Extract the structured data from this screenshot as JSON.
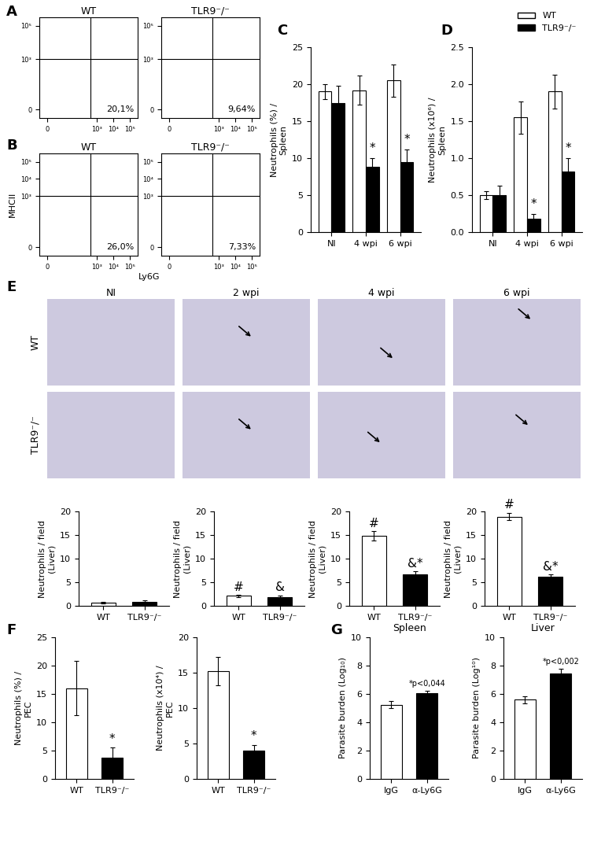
{
  "chart_data": [
    {
      "type": "flow_cytometry",
      "panel_label": "A",
      "title": "WT",
      "xlim": [
        -0.5,
        5.5
      ],
      "ylim": [
        -0.5,
        5.5
      ],
      "xticks": [
        {
          "value": 0,
          "label": "0"
        },
        {
          "value": 3,
          "label": "10³"
        },
        {
          "value": 4,
          "label": "10⁴"
        },
        {
          "value": 5,
          "label": "10⁵"
        }
      ],
      "yticks": [
        {
          "value": 0,
          "label": "0"
        },
        {
          "value": 3,
          "label": "10³"
        },
        {
          "value": 5,
          "label": "10⁵"
        }
      ],
      "gates": {
        "x": 2.6,
        "y": 3.0
      },
      "annotation": "20,1%"
    },
    {
      "type": "flow_cytometry",
      "title": "TLR9⁻/⁻",
      "xlim": [
        -0.5,
        5.5
      ],
      "ylim": [
        -0.5,
        5.5
      ],
      "xticks": [
        {
          "value": 0,
          "label": "0"
        },
        {
          "value": 3,
          "label": "10³"
        },
        {
          "value": 4,
          "label": "10⁴"
        },
        {
          "value": 5,
          "label": "10⁵"
        }
      ],
      "yticks": [
        {
          "value": 0,
          "label": "0"
        },
        {
          "value": 3,
          "label": "10³"
        },
        {
          "value": 5,
          "label": "10⁵"
        }
      ],
      "gates": {
        "x": 2.6,
        "y": 3.0
      },
      "annotation": "9,64%"
    },
    {
      "type": "flow_cytometry",
      "panel_label": "B",
      "title": "WT",
      "y_label": "MHCII",
      "x_label": "Ly6G",
      "xlim": [
        -0.5,
        5.5
      ],
      "ylim": [
        -0.5,
        5.5
      ],
      "xticks": [
        {
          "value": 0,
          "label": "0"
        },
        {
          "value": 3,
          "label": "10³"
        },
        {
          "value": 4,
          "label": "10⁴"
        },
        {
          "value": 5,
          "label": "10⁵"
        }
      ],
      "yticks": [
        {
          "value": 0,
          "label": "0"
        },
        {
          "value": 3,
          "label": "10³"
        },
        {
          "value": 4,
          "label": "10⁴"
        },
        {
          "value": 5,
          "label": "10⁵"
        }
      ],
      "gates": {
        "x": 2.6,
        "y": 3.0
      },
      "annotation": "26,0%"
    },
    {
      "type": "flow_cytometry",
      "title": "TLR9⁻/⁻",
      "xlim": [
        -0.5,
        5.5
      ],
      "ylim": [
        -0.5,
        5.5
      ],
      "xticks": [
        {
          "value": 0,
          "label": "0"
        },
        {
          "value": 3,
          "label": "10³"
        },
        {
          "value": 4,
          "label": "10⁴"
        },
        {
          "value": 5,
          "label": "10⁵"
        }
      ],
      "yticks": [
        {
          "value": 0,
          "label": "0"
        },
        {
          "value": 3,
          "label": "10³"
        },
        {
          "value": 4,
          "label": "10⁴"
        },
        {
          "value": 5,
          "label": "10⁵"
        }
      ],
      "gates": {
        "x": 2.6,
        "y": 3.0
      },
      "annotation": "7,33%"
    },
    {
      "type": "bar",
      "panel_label": "C",
      "y_label": "Neutrophils (%) /\nSpleen",
      "categories": [
        "NI",
        "4 wpi",
        "6 wpi"
      ],
      "legend": "upper right",
      "series": [
        {
          "name": "WT",
          "color": "#ffffff",
          "values": [
            19.0,
            19.2,
            20.5
          ],
          "errors": [
            1.0,
            2.0,
            2.2
          ],
          "annotations": [
            null,
            null,
            null
          ]
        },
        {
          "name": "TLR9⁻/⁻",
          "color": "#000000",
          "values": [
            17.5,
            8.8,
            9.5
          ],
          "errors": [
            2.3,
            1.2,
            1.7
          ],
          "annotations": [
            null,
            "*",
            "*"
          ]
        }
      ],
      "ylim": [
        0,
        25
      ],
      "yticks": [
        0,
        5,
        10,
        15,
        20,
        25
      ]
    },
    {
      "type": "bar",
      "panel_label": "D",
      "y_label": "Neutrophils (x10⁶) /\nSpleen",
      "categories": [
        "NI",
        "4 wpi",
        "6 wpi"
      ],
      "series": [
        {
          "color": "#ffffff",
          "values": [
            0.5,
            1.55,
            1.9
          ],
          "errors": [
            0.05,
            0.22,
            0.23
          ],
          "annotations": [
            null,
            null,
            null
          ]
        },
        {
          "color": "#000000",
          "values": [
            0.5,
            0.18,
            0.82
          ],
          "errors": [
            0.13,
            0.07,
            0.18
          ],
          "annotations": [
            null,
            "*",
            "*"
          ]
        }
      ],
      "ylim": [
        0.0,
        2.5
      ],
      "yticks": [
        0.0,
        0.5,
        1.0,
        1.5,
        2.0,
        2.5
      ]
    },
    {
      "type": "image",
      "panel_label": "E",
      "title": "NI",
      "row_label": "WT"
    },
    {
      "type": "image",
      "title": "2 wpi"
    },
    {
      "type": "image",
      "title": "4 wpi"
    },
    {
      "type": "image",
      "title": "6 wpi"
    },
    {
      "type": "image",
      "row_label": "TLR9⁻/⁻"
    },
    {
      "type": "image"
    },
    {
      "type": "image"
    },
    {
      "type": "image"
    },
    {
      "type": "bar",
      "y_label": "Neutrophils / field\n(Liver)",
      "categories": [
        "WT",
        "TLR9⁻/⁻"
      ],
      "colors": [
        "#ffffff",
        "#000000"
      ],
      "values": [
        0.7,
        0.9
      ],
      "errors": [
        0.2,
        0.3
      ],
      "annotations": [
        null,
        null
      ],
      "ylim": [
        0,
        20
      ],
      "yticks": [
        0,
        5,
        10,
        15,
        20
      ]
    },
    {
      "type": "bar",
      "y_label": "Neutrophils / field\n(Liver)",
      "categories": [
        "WT",
        "TLR9⁻/⁻"
      ],
      "colors": [
        "#ffffff",
        "#000000"
      ],
      "values": [
        2.1,
        1.9
      ],
      "errors": [
        0.2,
        0.3
      ],
      "annotations": [
        "#",
        "&"
      ],
      "ylim": [
        0,
        20
      ],
      "yticks": [
        0,
        5,
        10,
        15,
        20
      ]
    },
    {
      "type": "bar",
      "y_label": "Neutrophils / field\n(Liver)",
      "categories": [
        "WT",
        "TLR9⁻/⁻"
      ],
      "colors": [
        "#ffffff",
        "#000000"
      ],
      "values": [
        14.8,
        6.6
      ],
      "errors": [
        1.0,
        0.7
      ],
      "annotations": [
        "#",
        "&*"
      ],
      "ylim": [
        0,
        20
      ],
      "yticks": [
        0,
        5,
        10,
        15,
        20
      ]
    },
    {
      "type": "bar",
      "y_label": "Neutrophils / field\n(Liver)",
      "categories": [
        "WT",
        "TLR9⁻/⁻"
      ],
      "colors": [
        "#ffffff",
        "#000000"
      ],
      "values": [
        18.9,
        6.1
      ],
      "errors": [
        0.8,
        0.5
      ],
      "annotations": [
        "#",
        "&*"
      ],
      "ylim": [
        0,
        20
      ],
      "yticks": [
        0,
        5,
        10,
        15,
        20
      ]
    },
    {
      "type": "bar",
      "panel_label": "F",
      "y_label": "Neutrophils (%) /\nPEC",
      "categories": [
        "WT",
        "TLR9⁻/⁻"
      ],
      "colors": [
        "#ffffff",
        "#000000"
      ],
      "values": [
        16.0,
        3.8
      ],
      "errors": [
        4.8,
        1.7
      ],
      "annotations": [
        null,
        "*"
      ],
      "ylim": [
        0,
        25
      ],
      "yticks": [
        0,
        5,
        10,
        15,
        20,
        25
      ]
    },
    {
      "type": "bar",
      "y_label": "Neutrophils (x10⁴) /\nPEC",
      "categories": [
        "WT",
        "TLR9⁻/⁻"
      ],
      "colors": [
        "#ffffff",
        "#000000"
      ],
      "values": [
        15.2,
        4.0
      ],
      "errors": [
        2.0,
        0.8
      ],
      "annotations": [
        null,
        "*"
      ],
      "ylim": [
        0,
        20
      ],
      "yticks": [
        0,
        5,
        10,
        15,
        20
      ]
    },
    {
      "type": "bar",
      "panel_label": "G",
      "title": "Spleen",
      "y_label": "Parasite burden (Log₁₀)",
      "categories": [
        "IgG",
        "α-Ly6G"
      ],
      "colors": [
        "#ffffff",
        "#000000"
      ],
      "values": [
        5.25,
        6.05
      ],
      "errors": [
        0.25,
        0.2
      ],
      "annotations": [
        null,
        "*p<0,044"
      ],
      "ylim": [
        0,
        10
      ],
      "yticks": [
        0,
        2,
        4,
        6,
        8,
        10
      ]
    },
    {
      "type": "bar",
      "title": "Liver",
      "y_label": "Parasite burden (Log¹⁰)",
      "categories": [
        "IgG",
        "α-Ly6G"
      ],
      "colors": [
        "#ffffff",
        "#000000"
      ],
      "values": [
        5.6,
        7.45
      ],
      "errors": [
        0.25,
        0.35
      ],
      "annotations": [
        null,
        "*p<0,002"
      ],
      "ylim": [
        0,
        10
      ],
      "yticks": [
        0,
        2,
        4,
        6,
        8,
        10
      ]
    }
  ]
}
